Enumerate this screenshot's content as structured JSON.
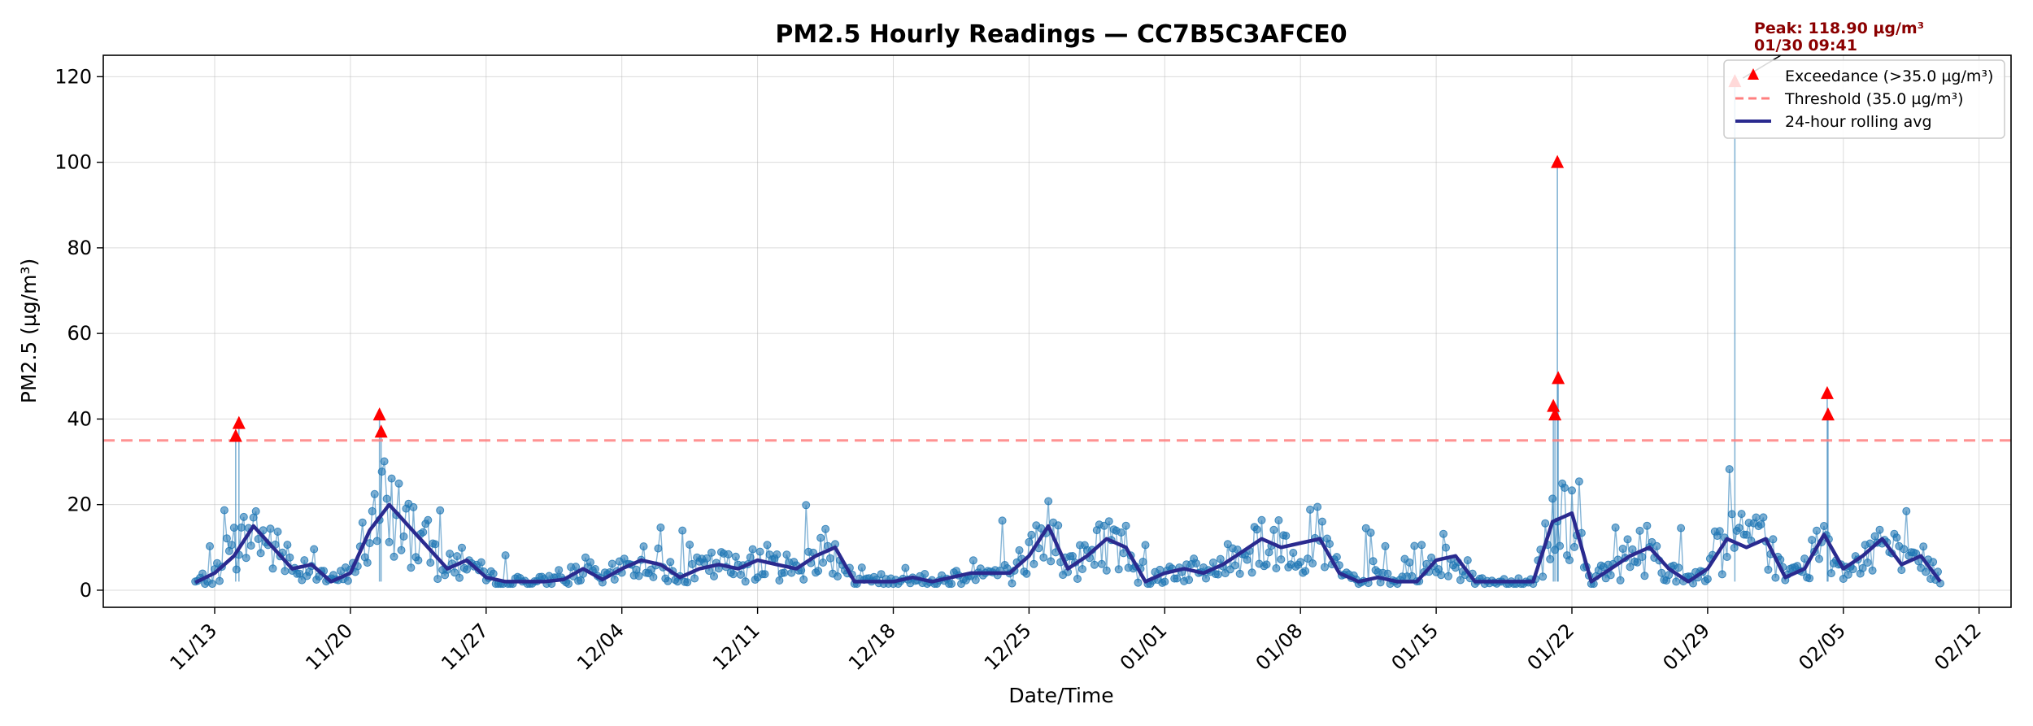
{
  "chart_data": {
    "type": "line",
    "title": "PM2.5 Hourly Readings — CC7B5C3AFCE0",
    "xlabel": "Date/Time",
    "ylabel": "PM2.5 (µg/m³)",
    "x_tick_labels": [
      "11/13",
      "11/20",
      "11/27",
      "12/04",
      "12/11",
      "12/18",
      "12/25",
      "01/01",
      "01/08",
      "01/15",
      "01/22",
      "01/29",
      "02/05",
      "02/12"
    ],
    "y_tick_labels": [
      "0",
      "20",
      "40",
      "60",
      "80",
      "100",
      "120"
    ],
    "ylim": [
      -4,
      125
    ],
    "grid": true,
    "legend_position": "upper right",
    "threshold": {
      "value": 35.0,
      "label": "Threshold (35.0 µg/m³)",
      "color": "#ff7f7f"
    },
    "peak_annotation": {
      "line1": "Peak: 118.90 µg/m³",
      "line2": "01/30 09:41",
      "date": "01/30 09:41",
      "value": 118.9,
      "color": "#8b0000"
    },
    "series": [
      {
        "name": "Exceedance (>35.0 µg/m³)",
        "kind": "marker",
        "color": "#ff0000",
        "points": [
          {
            "x": "11/14 02:00",
            "y": 36.0
          },
          {
            "x": "11/14 06:00",
            "y": 39.0
          },
          {
            "x": "11/21 12:00",
            "y": 41.0
          },
          {
            "x": "11/21 14:00",
            "y": 37.0
          },
          {
            "x": "01/21 01:00",
            "y": 43.0
          },
          {
            "x": "01/21 03:00",
            "y": 41.0
          },
          {
            "x": "01/21 06:00",
            "y": 100.0
          },
          {
            "x": "01/21 07:00",
            "y": 49.5
          },
          {
            "x": "01/30 09:41",
            "y": 118.9
          },
          {
            "x": "02/04 04:00",
            "y": 46.0
          },
          {
            "x": "02/04 05:00",
            "y": 41.0
          }
        ]
      },
      {
        "name": "24-hour rolling avg",
        "kind": "line",
        "color": "#2a2a8f",
        "points": [
          {
            "x": "11/12",
            "y": 1.8
          },
          {
            "x": "11/13",
            "y": 4.0
          },
          {
            "x": "11/14",
            "y": 8.0
          },
          {
            "x": "11/15",
            "y": 15.0
          },
          {
            "x": "11/16",
            "y": 10.0
          },
          {
            "x": "11/17",
            "y": 5.0
          },
          {
            "x": "11/18",
            "y": 6.0
          },
          {
            "x": "11/19",
            "y": 2.0
          },
          {
            "x": "11/20",
            "y": 4.0
          },
          {
            "x": "11/21",
            "y": 14.0
          },
          {
            "x": "11/22",
            "y": 20.0
          },
          {
            "x": "11/23",
            "y": 15.0
          },
          {
            "x": "11/24",
            "y": 10.0
          },
          {
            "x": "11/25",
            "y": 5.0
          },
          {
            "x": "11/26",
            "y": 7.0
          },
          {
            "x": "11/27",
            "y": 3.0
          },
          {
            "x": "11/28",
            "y": 2.0
          },
          {
            "x": "11/29",
            "y": 2.0
          },
          {
            "x": "11/30",
            "y": 2.0
          },
          {
            "x": "12/01",
            "y": 2.5
          },
          {
            "x": "12/02",
            "y": 5.0
          },
          {
            "x": "12/03",
            "y": 2.5
          },
          {
            "x": "12/04",
            "y": 5.0
          },
          {
            "x": "12/05",
            "y": 7.0
          },
          {
            "x": "12/06",
            "y": 6.0
          },
          {
            "x": "12/07",
            "y": 3.0
          },
          {
            "x": "12/08",
            "y": 5.0
          },
          {
            "x": "12/09",
            "y": 6.0
          },
          {
            "x": "12/10",
            "y": 5.0
          },
          {
            "x": "12/11",
            "y": 7.0
          },
          {
            "x": "12/12",
            "y": 6.0
          },
          {
            "x": "12/13",
            "y": 5.0
          },
          {
            "x": "12/14",
            "y": 8.0
          },
          {
            "x": "12/15",
            "y": 10.0
          },
          {
            "x": "12/16",
            "y": 2.0
          },
          {
            "x": "12/17",
            "y": 2.0
          },
          {
            "x": "12/18",
            "y": 2.0
          },
          {
            "x": "12/19",
            "y": 3.0
          },
          {
            "x": "12/20",
            "y": 2.0
          },
          {
            "x": "12/21",
            "y": 3.0
          },
          {
            "x": "12/22",
            "y": 4.0
          },
          {
            "x": "12/23",
            "y": 4.0
          },
          {
            "x": "12/24",
            "y": 4.0
          },
          {
            "x": "12/25",
            "y": 8.0
          },
          {
            "x": "12/26",
            "y": 15.0
          },
          {
            "x": "12/27",
            "y": 5.0
          },
          {
            "x": "12/28",
            "y": 8.0
          },
          {
            "x": "12/29",
            "y": 12.0
          },
          {
            "x": "12/30",
            "y": 10.0
          },
          {
            "x": "12/31",
            "y": 2.0
          },
          {
            "x": "01/01",
            "y": 4.0
          },
          {
            "x": "01/02",
            "y": 5.0
          },
          {
            "x": "01/03",
            "y": 4.0
          },
          {
            "x": "01/04",
            "y": 6.0
          },
          {
            "x": "01/05",
            "y": 9.0
          },
          {
            "x": "01/06",
            "y": 12.0
          },
          {
            "x": "01/07",
            "y": 10.0
          },
          {
            "x": "01/08",
            "y": 11.0
          },
          {
            "x": "01/09",
            "y": 12.0
          },
          {
            "x": "01/10",
            "y": 4.0
          },
          {
            "x": "01/11",
            "y": 2.0
          },
          {
            "x": "01/12",
            "y": 3.0
          },
          {
            "x": "01/13",
            "y": 2.0
          },
          {
            "x": "01/14",
            "y": 2.0
          },
          {
            "x": "01/15",
            "y": 7.0
          },
          {
            "x": "01/16",
            "y": 8.0
          },
          {
            "x": "01/17",
            "y": 2.0
          },
          {
            "x": "01/18",
            "y": 2.0
          },
          {
            "x": "01/19",
            "y": 2.0
          },
          {
            "x": "01/20",
            "y": 2.0
          },
          {
            "x": "01/21",
            "y": 16.0
          },
          {
            "x": "01/22",
            "y": 18.0
          },
          {
            "x": "01/23",
            "y": 2.0
          },
          {
            "x": "01/24",
            "y": 5.0
          },
          {
            "x": "01/25",
            "y": 8.0
          },
          {
            "x": "01/26",
            "y": 10.0
          },
          {
            "x": "01/27",
            "y": 5.0
          },
          {
            "x": "01/28",
            "y": 2.0
          },
          {
            "x": "01/29",
            "y": 5.0
          },
          {
            "x": "01/30",
            "y": 12.0
          },
          {
            "x": "01/31",
            "y": 10.0
          },
          {
            "x": "02/01",
            "y": 12.0
          },
          {
            "x": "02/02",
            "y": 3.0
          },
          {
            "x": "02/03",
            "y": 5.0
          },
          {
            "x": "02/04",
            "y": 13.0
          },
          {
            "x": "02/05",
            "y": 5.0
          },
          {
            "x": "02/06",
            "y": 8.0
          },
          {
            "x": "02/07",
            "y": 12.0
          },
          {
            "x": "02/08",
            "y": 6.0
          },
          {
            "x": "02/09",
            "y": 8.0
          },
          {
            "x": "02/10",
            "y": 2.0
          }
        ]
      }
    ]
  }
}
